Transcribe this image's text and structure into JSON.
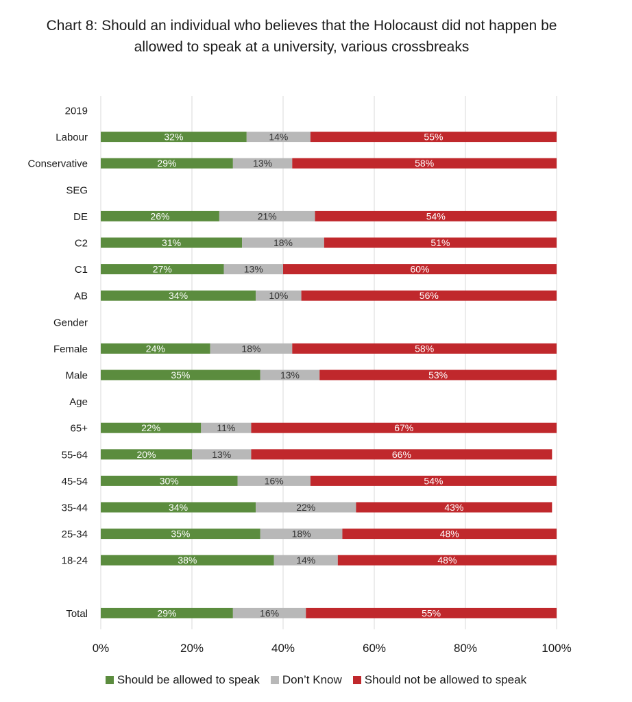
{
  "chart_data": {
    "type": "bar",
    "orientation": "horizontal",
    "stacked": "percent",
    "title": "Chart 8: Should an individual who believes that the Holocaust did not happen be allowed to speak at a university, various crossbreaks",
    "categories": [
      "2019",
      "Labour",
      "Conservative",
      "SEG",
      "DE",
      "C2",
      "C1",
      "AB",
      "Gender",
      "Female",
      "Male",
      "Age",
      "65+",
      "55-64",
      "45-54",
      "35-44",
      "25-34",
      "18-24",
      "",
      "Total"
    ],
    "series": [
      {
        "name": "Should be allowed to speak",
        "color": "#5b8c3e",
        "values": [
          null,
          32,
          29,
          null,
          26,
          31,
          27,
          34,
          null,
          24,
          35,
          null,
          22,
          20,
          30,
          34,
          35,
          38,
          null,
          29
        ]
      },
      {
        "name": "Don’t Know",
        "color": "#b8b8b8",
        "values": [
          null,
          14,
          13,
          null,
          21,
          18,
          13,
          10,
          null,
          18,
          13,
          null,
          11,
          13,
          16,
          22,
          18,
          14,
          null,
          16
        ]
      },
      {
        "name": "Should not be allowed to speak",
        "color": "#c0282c",
        "values": [
          null,
          55,
          58,
          null,
          54,
          51,
          60,
          56,
          null,
          58,
          53,
          null,
          67,
          66,
          54,
          43,
          48,
          48,
          null,
          55
        ]
      }
    ],
    "xlim": [
      0,
      100
    ],
    "x_ticks": [
      "0%",
      "20%",
      "40%",
      "60%",
      "80%",
      "100%"
    ],
    "value_suffix": "%",
    "grid": true,
    "legend_position": "bottom"
  }
}
